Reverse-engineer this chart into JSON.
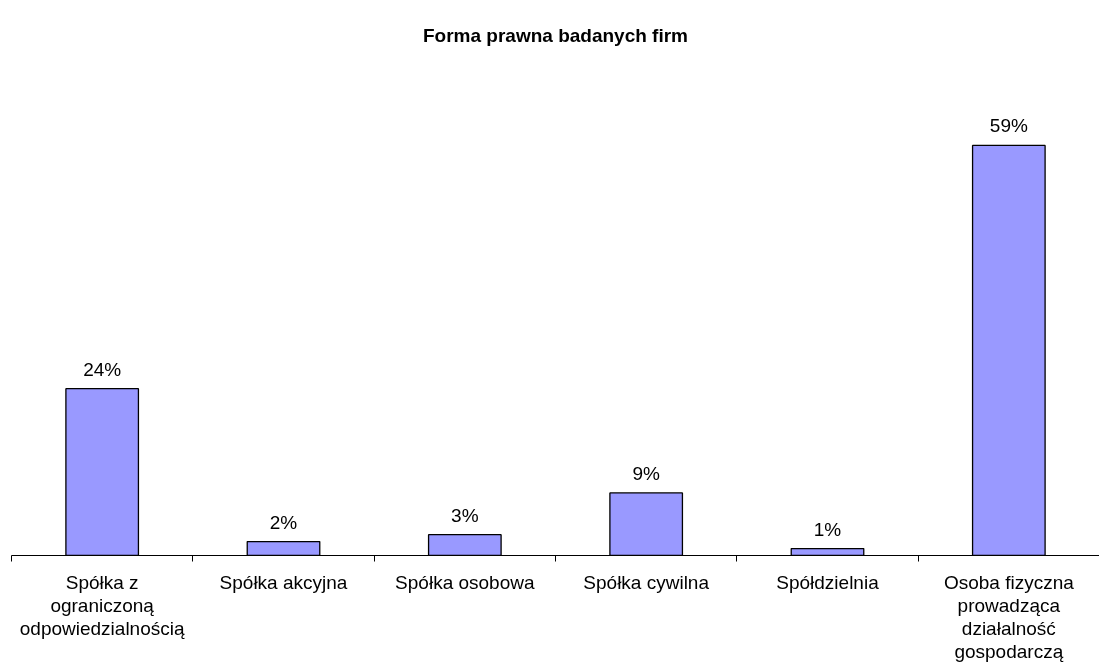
{
  "chart_data": {
    "type": "bar",
    "title": "Forma prawna badanych firm",
    "categories": [
      "Spółka z ograniczoną odpowiedzialnością",
      "Spółka akcyjna",
      "Spółka osobowa",
      "Spółka cywilna",
      "Spółdzielnia",
      "Osoba fizyczna prowadząca działalność gospodarczą"
    ],
    "values": [
      24,
      2,
      3,
      9,
      1,
      59
    ],
    "value_labels": [
      "24%",
      "2%",
      "3%",
      "9%",
      "1%",
      "59%"
    ],
    "color": "#9999ff",
    "tick_labels": "x"
  }
}
